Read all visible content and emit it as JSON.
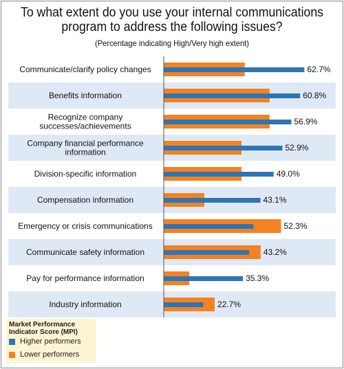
{
  "chart_data": {
    "type": "bar",
    "orientation": "horizontal",
    "title": "To what extent do you use your internal communications program to address the following issues?",
    "subtitle": "(Percentage indicating High/Very high extent)",
    "categories": [
      "Communicate/clarify policy changes",
      "Benefits information",
      "Recognize company successes/achievements",
      "Company financial performance information",
      "Division-specific information",
      "Compensation information",
      "Emergency or crisis communications",
      "Communicate safety information",
      "Pay for performance information",
      "Industry information"
    ],
    "series": [
      {
        "name": "Higher performers",
        "color": "#2e75b6",
        "values": [
          62.7,
          60.8,
          56.9,
          52.9,
          49.0,
          43.1,
          40.0,
          38.1,
          35.3,
          17.6
        ]
      },
      {
        "name": "Lower performers",
        "color": "#f58220",
        "values": [
          36.1,
          47.2,
          47.2,
          34.7,
          34.7,
          18.1,
          52.3,
          43.2,
          11.4,
          22.7
        ]
      }
    ],
    "data_labels": [
      "62.7%",
      "60.8%",
      "56.9%",
      "52.9%",
      "49.0%",
      "43.1%",
      "52.3%",
      "43.2%",
      "35.3%",
      "22.7%"
    ],
    "xlim": [
      0,
      100
    ],
    "grid": false,
    "legend_position": "bottom-left"
  },
  "legend": {
    "title": "Market Performance Indicator Score (MPI)",
    "items": [
      {
        "label": "Higher performers",
        "color": "#2e75b6"
      },
      {
        "label": "Lower performers",
        "color": "#f58220"
      }
    ]
  },
  "colors": {
    "row_band": "#dfe9f5",
    "axis": "#555555"
  }
}
